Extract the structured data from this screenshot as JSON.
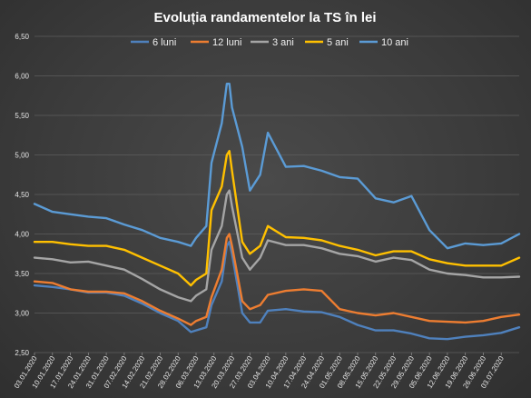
{
  "chart_data": {
    "type": "line",
    "title": "Evoluția  randamentelor  la TS în lei",
    "xlabel": "",
    "ylabel": "",
    "ylim": [
      2.5,
      6.5
    ],
    "yticks": [
      "6,50",
      "6,00",
      "5,50",
      "5,00",
      "4,50",
      "4,00",
      "3,50",
      "3,00",
      "2,50"
    ],
    "grid": true,
    "legend_position": "top",
    "x_tick_labels": [
      "03.01.2020",
      "10.01.2020",
      "17.01.2020",
      "24.01.2020",
      "31.01.2020",
      "07.02.2020",
      "14.02.2020",
      "21.02.2020",
      "28.02.2020",
      "06.03.2020",
      "13.03.2020",
      "20.03.2020",
      "27.03.2020",
      "03.04.2020",
      "10.04.2020",
      "17.04.2020",
      "24.04.2020",
      "01.05.2020",
      "08.05.2020",
      "15.05.2020",
      "22.05.2020",
      "29.05.2020",
      "05.06.2020",
      "12.06.2020",
      "19.06.2020",
      "26.06.2020",
      "03.07.2020"
    ],
    "x_range": [
      "2020-01-03",
      "2020-07-10"
    ],
    "series": [
      {
        "name": "6 luni",
        "color": "#4f81bd",
        "points": [
          [
            "2020-01-03",
            3.35
          ],
          [
            "2020-01-10",
            3.33
          ],
          [
            "2020-01-17",
            3.3
          ],
          [
            "2020-01-24",
            3.26
          ],
          [
            "2020-01-31",
            3.26
          ],
          [
            "2020-02-07",
            3.22
          ],
          [
            "2020-02-14",
            3.12
          ],
          [
            "2020-02-21",
            3.0
          ],
          [
            "2020-02-28",
            2.9
          ],
          [
            "2020-03-04",
            2.76
          ],
          [
            "2020-03-06",
            2.78
          ],
          [
            "2020-03-10",
            2.82
          ],
          [
            "2020-03-12",
            3.1
          ],
          [
            "2020-03-16",
            3.4
          ],
          [
            "2020-03-18",
            3.85
          ],
          [
            "2020-03-19",
            3.9
          ],
          [
            "2020-03-20",
            3.75
          ],
          [
            "2020-03-24",
            3.0
          ],
          [
            "2020-03-27",
            2.88
          ],
          [
            "2020-03-31",
            2.88
          ],
          [
            "2020-04-03",
            3.03
          ],
          [
            "2020-04-10",
            3.05
          ],
          [
            "2020-04-17",
            3.02
          ],
          [
            "2020-04-24",
            3.01
          ],
          [
            "2020-05-01",
            2.95
          ],
          [
            "2020-05-08",
            2.85
          ],
          [
            "2020-05-15",
            2.78
          ],
          [
            "2020-05-22",
            2.78
          ],
          [
            "2020-05-29",
            2.74
          ],
          [
            "2020-06-05",
            2.68
          ],
          [
            "2020-06-12",
            2.67
          ],
          [
            "2020-06-19",
            2.7
          ],
          [
            "2020-06-26",
            2.72
          ],
          [
            "2020-07-03",
            2.75
          ],
          [
            "2020-07-10",
            2.82
          ]
        ]
      },
      {
        "name": "12 luni",
        "color": "#ed7d31",
        "points": [
          [
            "2020-01-03",
            3.4
          ],
          [
            "2020-01-10",
            3.38
          ],
          [
            "2020-01-17",
            3.3
          ],
          [
            "2020-01-24",
            3.27
          ],
          [
            "2020-01-31",
            3.27
          ],
          [
            "2020-02-07",
            3.25
          ],
          [
            "2020-02-14",
            3.15
          ],
          [
            "2020-02-21",
            3.03
          ],
          [
            "2020-02-28",
            2.93
          ],
          [
            "2020-03-04",
            2.85
          ],
          [
            "2020-03-06",
            2.9
          ],
          [
            "2020-03-10",
            2.95
          ],
          [
            "2020-03-12",
            3.2
          ],
          [
            "2020-03-16",
            3.55
          ],
          [
            "2020-03-18",
            3.95
          ],
          [
            "2020-03-19",
            4.0
          ],
          [
            "2020-03-20",
            3.85
          ],
          [
            "2020-03-24",
            3.15
          ],
          [
            "2020-03-27",
            3.05
          ],
          [
            "2020-03-31",
            3.1
          ],
          [
            "2020-04-03",
            3.23
          ],
          [
            "2020-04-10",
            3.28
          ],
          [
            "2020-04-17",
            3.3
          ],
          [
            "2020-04-24",
            3.28
          ],
          [
            "2020-05-01",
            3.05
          ],
          [
            "2020-05-08",
            3.0
          ],
          [
            "2020-05-15",
            2.97
          ],
          [
            "2020-05-22",
            3.0
          ],
          [
            "2020-05-29",
            2.95
          ],
          [
            "2020-06-05",
            2.9
          ],
          [
            "2020-06-12",
            2.89
          ],
          [
            "2020-06-19",
            2.88
          ],
          [
            "2020-06-26",
            2.9
          ],
          [
            "2020-07-03",
            2.95
          ],
          [
            "2020-07-10",
            2.98
          ]
        ]
      },
      {
        "name": "3 ani",
        "color": "#a5a5a5",
        "points": [
          [
            "2020-01-03",
            3.7
          ],
          [
            "2020-01-10",
            3.68
          ],
          [
            "2020-01-17",
            3.64
          ],
          [
            "2020-01-24",
            3.65
          ],
          [
            "2020-01-31",
            3.6
          ],
          [
            "2020-02-07",
            3.55
          ],
          [
            "2020-02-14",
            3.43
          ],
          [
            "2020-02-21",
            3.3
          ],
          [
            "2020-02-28",
            3.2
          ],
          [
            "2020-03-04",
            3.15
          ],
          [
            "2020-03-06",
            3.22
          ],
          [
            "2020-03-10",
            3.3
          ],
          [
            "2020-03-12",
            3.8
          ],
          [
            "2020-03-16",
            4.1
          ],
          [
            "2020-03-18",
            4.5
          ],
          [
            "2020-03-19",
            4.55
          ],
          [
            "2020-03-20",
            4.35
          ],
          [
            "2020-03-24",
            3.7
          ],
          [
            "2020-03-27",
            3.55
          ],
          [
            "2020-03-31",
            3.7
          ],
          [
            "2020-04-03",
            3.92
          ],
          [
            "2020-04-10",
            3.86
          ],
          [
            "2020-04-17",
            3.86
          ],
          [
            "2020-04-24",
            3.82
          ],
          [
            "2020-05-01",
            3.75
          ],
          [
            "2020-05-08",
            3.72
          ],
          [
            "2020-05-15",
            3.65
          ],
          [
            "2020-05-22",
            3.7
          ],
          [
            "2020-05-29",
            3.67
          ],
          [
            "2020-06-05",
            3.55
          ],
          [
            "2020-06-12",
            3.5
          ],
          [
            "2020-06-19",
            3.48
          ],
          [
            "2020-06-26",
            3.45
          ],
          [
            "2020-07-03",
            3.45
          ],
          [
            "2020-07-10",
            3.46
          ]
        ]
      },
      {
        "name": "5 ani",
        "color": "#ffc000",
        "points": [
          [
            "2020-01-03",
            3.9
          ],
          [
            "2020-01-10",
            3.9
          ],
          [
            "2020-01-17",
            3.87
          ],
          [
            "2020-01-24",
            3.85
          ],
          [
            "2020-01-31",
            3.85
          ],
          [
            "2020-02-07",
            3.8
          ],
          [
            "2020-02-14",
            3.7
          ],
          [
            "2020-02-21",
            3.6
          ],
          [
            "2020-02-28",
            3.5
          ],
          [
            "2020-03-04",
            3.35
          ],
          [
            "2020-03-06",
            3.42
          ],
          [
            "2020-03-10",
            3.5
          ],
          [
            "2020-03-12",
            4.3
          ],
          [
            "2020-03-16",
            4.6
          ],
          [
            "2020-03-18",
            5.0
          ],
          [
            "2020-03-19",
            5.05
          ],
          [
            "2020-03-20",
            4.8
          ],
          [
            "2020-03-24",
            3.9
          ],
          [
            "2020-03-27",
            3.75
          ],
          [
            "2020-03-31",
            3.85
          ],
          [
            "2020-04-03",
            4.1
          ],
          [
            "2020-04-10",
            3.96
          ],
          [
            "2020-04-17",
            3.95
          ],
          [
            "2020-04-24",
            3.92
          ],
          [
            "2020-05-01",
            3.85
          ],
          [
            "2020-05-08",
            3.8
          ],
          [
            "2020-05-15",
            3.73
          ],
          [
            "2020-05-22",
            3.78
          ],
          [
            "2020-05-29",
            3.78
          ],
          [
            "2020-06-05",
            3.68
          ],
          [
            "2020-06-12",
            3.63
          ],
          [
            "2020-06-19",
            3.6
          ],
          [
            "2020-06-26",
            3.6
          ],
          [
            "2020-07-03",
            3.6
          ],
          [
            "2020-07-10",
            3.7
          ]
        ]
      },
      {
        "name": "10 ani",
        "color": "#5b9bd5",
        "points": [
          [
            "2020-01-03",
            4.38
          ],
          [
            "2020-01-10",
            4.28
          ],
          [
            "2020-01-17",
            4.25
          ],
          [
            "2020-01-24",
            4.22
          ],
          [
            "2020-01-31",
            4.2
          ],
          [
            "2020-02-07",
            4.12
          ],
          [
            "2020-02-14",
            4.05
          ],
          [
            "2020-02-21",
            3.95
          ],
          [
            "2020-02-28",
            3.9
          ],
          [
            "2020-03-04",
            3.85
          ],
          [
            "2020-03-06",
            3.95
          ],
          [
            "2020-03-10",
            4.1
          ],
          [
            "2020-03-12",
            4.9
          ],
          [
            "2020-03-16",
            5.4
          ],
          [
            "2020-03-18",
            5.9
          ],
          [
            "2020-03-19",
            5.9
          ],
          [
            "2020-03-20",
            5.6
          ],
          [
            "2020-03-24",
            5.1
          ],
          [
            "2020-03-27",
            4.55
          ],
          [
            "2020-03-31",
            4.75
          ],
          [
            "2020-04-03",
            5.28
          ],
          [
            "2020-04-10",
            4.85
          ],
          [
            "2020-04-17",
            4.86
          ],
          [
            "2020-04-24",
            4.8
          ],
          [
            "2020-05-01",
            4.72
          ],
          [
            "2020-05-08",
            4.7
          ],
          [
            "2020-05-15",
            4.45
          ],
          [
            "2020-05-22",
            4.4
          ],
          [
            "2020-05-29",
            4.48
          ],
          [
            "2020-06-05",
            4.05
          ],
          [
            "2020-06-12",
            3.82
          ],
          [
            "2020-06-19",
            3.88
          ],
          [
            "2020-06-26",
            3.86
          ],
          [
            "2020-07-03",
            3.88
          ],
          [
            "2020-07-10",
            4.0
          ]
        ]
      }
    ]
  }
}
